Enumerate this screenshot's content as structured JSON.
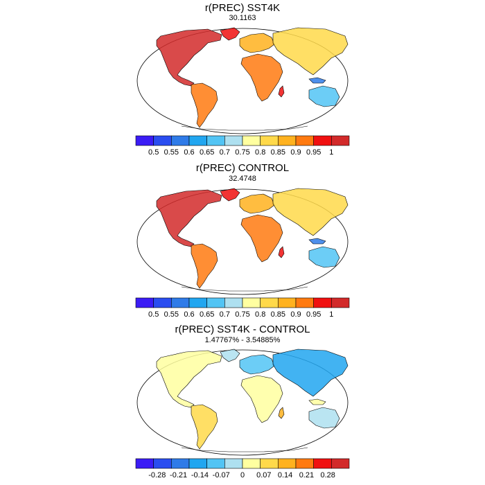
{
  "panels": [
    {
      "title": "r(PREC) SST4K",
      "subtitle": "30.1163",
      "colorbar": {
        "colors": [
          "#3b1cf5",
          "#2a4df0",
          "#2f7be8",
          "#21a6f0",
          "#52c4f4",
          "#aee0f0",
          "#ffffa0",
          "#ffd94a",
          "#ffb21f",
          "#ff7a10",
          "#f01010",
          "#d22a2a"
        ],
        "labels": [
          "0.5",
          "0.55",
          "0.6",
          "0.65",
          "0.7",
          "0.75",
          "0.8",
          "0.85",
          "0.9",
          "0.95",
          "1"
        ]
      }
    },
    {
      "title": "r(PREC) CONTROL",
      "subtitle": "32.4748",
      "colorbar": {
        "colors": [
          "#3b1cf5",
          "#2a4df0",
          "#2f7be8",
          "#21a6f0",
          "#52c4f4",
          "#aee0f0",
          "#ffffa0",
          "#ffd94a",
          "#ffb21f",
          "#ff7a10",
          "#f01010",
          "#d22a2a"
        ],
        "labels": [
          "0.5",
          "0.55",
          "0.6",
          "0.65",
          "0.7",
          "0.75",
          "0.8",
          "0.85",
          "0.9",
          "0.95",
          "1"
        ]
      }
    },
    {
      "title": "r(PREC) SST4K - CONTROL",
      "subtitle": "1.47767% - 3.54885%",
      "colorbar": {
        "colors": [
          "#3b1cf5",
          "#2a4df0",
          "#2f7be8",
          "#21a6f0",
          "#52c4f4",
          "#aee0f0",
          "#ffffa0",
          "#ffd94a",
          "#ffb21f",
          "#ff7a10",
          "#f01010",
          "#d22a2a"
        ],
        "labels": [
          "-0.28",
          "-0.21",
          "-0.14",
          "-0.07",
          "0",
          "0.07",
          "0.14",
          "0.21",
          "0.28"
        ]
      }
    }
  ]
}
